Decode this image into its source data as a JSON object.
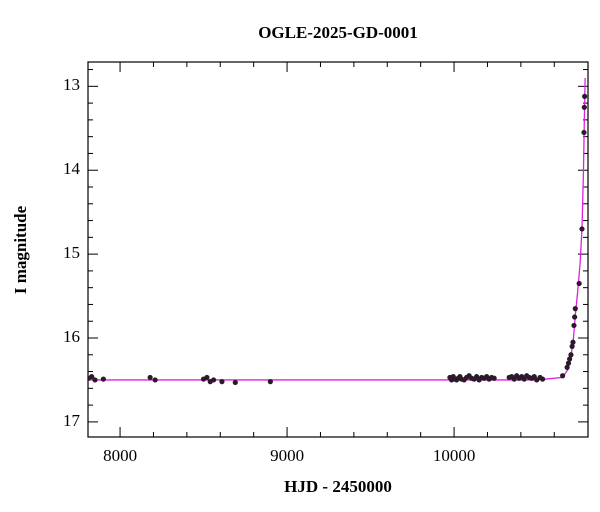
{
  "chart_data": {
    "type": "scatter",
    "title": "OGLE-2025-GD-0001",
    "x_label": "HJD - 2450000",
    "y_label": "I magnitude",
    "xlim": [
      7808,
      10802
    ],
    "ylim": [
      17.18,
      12.71
    ],
    "xticks": [
      8000,
      9000,
      10000
    ],
    "yticks": [
      13,
      14,
      15,
      16,
      17
    ],
    "xminorticks": [
      8200,
      8400,
      8600,
      8800,
      9200,
      9400,
      9600,
      9800,
      10200,
      10400,
      10600
    ],
    "yminorticks": [
      12.8,
      13.2,
      13.4,
      13.6,
      13.8,
      14.2,
      14.4,
      14.6,
      14.8,
      15.2,
      15.4,
      15.6,
      15.8,
      16.2,
      16.4,
      16.6,
      16.8
    ],
    "points": {
      "color": "#2a1a2a",
      "x": [
        7810,
        7830,
        7850,
        7900,
        8180,
        8210,
        8500,
        8520,
        8540,
        8560,
        8610,
        8690,
        8900,
        9975,
        9985,
        9995,
        10005,
        10015,
        10025,
        10035,
        10045,
        10060,
        10075,
        10090,
        10105,
        10120,
        10135,
        10150,
        10165,
        10180,
        10195,
        10210,
        10225,
        10240,
        10330,
        10345,
        10360,
        10375,
        10390,
        10405,
        10420,
        10435,
        10450,
        10465,
        10480,
        10495,
        10515,
        10530,
        10650,
        10677,
        10685,
        10692,
        10700,
        10707,
        10712,
        10718,
        10722,
        10726,
        10749,
        10766,
        10778,
        10780,
        10782
      ],
      "y": [
        16.48,
        16.46,
        16.5,
        16.49,
        16.47,
        16.5,
        16.49,
        16.47,
        16.52,
        16.5,
        16.52,
        16.53,
        16.52,
        16.47,
        16.5,
        16.46,
        16.49,
        16.5,
        16.48,
        16.46,
        16.49,
        16.5,
        16.47,
        16.45,
        16.48,
        16.49,
        16.46,
        16.5,
        16.47,
        16.48,
        16.46,
        16.49,
        16.47,
        16.48,
        16.47,
        16.46,
        16.49,
        16.45,
        16.48,
        16.46,
        16.49,
        16.45,
        16.47,
        16.48,
        16.46,
        16.5,
        16.47,
        16.49,
        16.45,
        16.35,
        16.3,
        16.25,
        16.2,
        16.1,
        16.05,
        15.85,
        15.75,
        15.65,
        15.35,
        14.7,
        13.55,
        13.25,
        13.12
      ]
    },
    "model": {
      "color": "#e020e0",
      "x": [
        7808,
        10500,
        10650,
        10680,
        10700,
        10715,
        10725,
        10740,
        10755,
        10766,
        10775,
        10780,
        10785
      ],
      "y": [
        16.5,
        16.5,
        16.47,
        16.38,
        16.22,
        16.0,
        15.75,
        15.45,
        15.1,
        14.7,
        14.0,
        13.4,
        12.9
      ]
    }
  }
}
